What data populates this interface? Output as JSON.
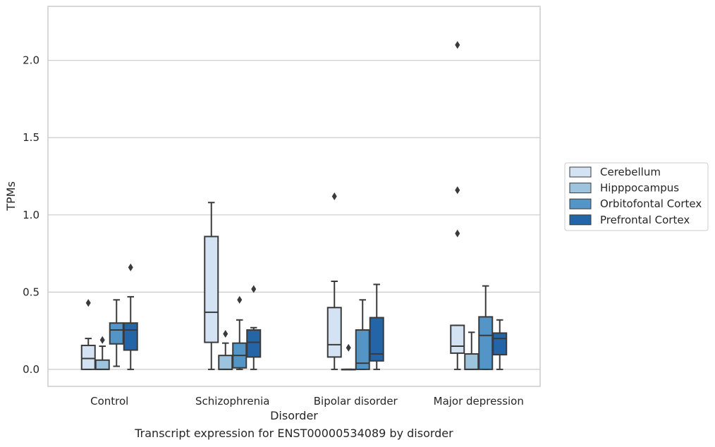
{
  "chart_data": {
    "type": "box",
    "xlabel": "Disorder",
    "ylabel": "TPMs",
    "ylim": [
      -0.11,
      2.35
    ],
    "yticks": [
      0.0,
      0.5,
      1.0,
      1.5,
      2.0
    ],
    "ytick_labels": [
      "0.0",
      "0.5",
      "1.0",
      "1.5",
      "2.0"
    ],
    "grid": "horizontal",
    "legend_position": "right",
    "categories": [
      "Control",
      "Schizophrenia",
      "Bipolar disorder",
      "Major depression"
    ],
    "series": [
      {
        "name": "Cerebellum",
        "color": "#d4e3f3",
        "boxes": [
          {
            "whislo": 0.0,
            "q1": 0.0,
            "med": 0.07,
            "q3": 0.155,
            "whishi": 0.2,
            "fliers": [
              0.43
            ]
          },
          {
            "whislo": 0.0,
            "q1": 0.175,
            "med": 0.37,
            "q3": 0.86,
            "whishi": 1.08,
            "fliers": []
          },
          {
            "whislo": 0.0,
            "q1": 0.08,
            "med": 0.16,
            "q3": 0.4,
            "whishi": 0.57,
            "fliers": [
              1.12
            ]
          },
          {
            "whislo": 0.0,
            "q1": 0.105,
            "med": 0.15,
            "q3": 0.285,
            "whishi": 0.285,
            "fliers": [
              2.1,
              1.16,
              0.88
            ]
          }
        ]
      },
      {
        "name": "Hipppocampus",
        "color": "#9ec4dd",
        "boxes": [
          {
            "whislo": 0.0,
            "q1": 0.0,
            "med": 0.0,
            "q3": 0.06,
            "whishi": 0.15,
            "fliers": [
              0.19
            ]
          },
          {
            "whislo": 0.0,
            "q1": 0.0,
            "med": 0.0,
            "q3": 0.09,
            "whishi": 0.17,
            "fliers": [
              0.23
            ]
          },
          {
            "whislo": 0.0,
            "q1": 0.0,
            "med": 0.0,
            "q3": 0.0,
            "whishi": 0.0,
            "fliers": [
              0.14
            ]
          },
          {
            "whislo": 0.0,
            "q1": 0.0,
            "med": 0.0,
            "q3": 0.1,
            "whishi": 0.24,
            "fliers": []
          }
        ]
      },
      {
        "name": "Orbitofontal Cortex",
        "color": "#5395c6",
        "boxes": [
          {
            "whislo": 0.02,
            "q1": 0.165,
            "med": 0.255,
            "q3": 0.3,
            "whishi": 0.45,
            "fliers": []
          },
          {
            "whislo": 0.0,
            "q1": 0.01,
            "med": 0.09,
            "q3": 0.17,
            "whishi": 0.32,
            "fliers": [
              0.45
            ]
          },
          {
            "whislo": 0.0,
            "q1": 0.0,
            "med": 0.04,
            "q3": 0.255,
            "whishi": 0.45,
            "fliers": []
          },
          {
            "whislo": 0.0,
            "q1": 0.0,
            "med": 0.22,
            "q3": 0.34,
            "whishi": 0.54,
            "fliers": []
          }
        ]
      },
      {
        "name": "Prefrontal Cortex",
        "color": "#2465a7",
        "boxes": [
          {
            "whislo": 0.0,
            "q1": 0.125,
            "med": 0.255,
            "q3": 0.3,
            "whishi": 0.47,
            "fliers": [
              0.66
            ]
          },
          {
            "whislo": 0.0,
            "q1": 0.08,
            "med": 0.175,
            "q3": 0.255,
            "whishi": 0.27,
            "fliers": [
              0.52
            ]
          },
          {
            "whislo": 0.0,
            "q1": 0.055,
            "med": 0.1,
            "q3": 0.335,
            "whishi": 0.55,
            "fliers": []
          },
          {
            "whislo": 0.0,
            "q1": 0.095,
            "med": 0.2,
            "q3": 0.235,
            "whishi": 0.32,
            "fliers": []
          }
        ]
      }
    ]
  },
  "caption": "Transcript expression for ENST00000534089 by disorder"
}
